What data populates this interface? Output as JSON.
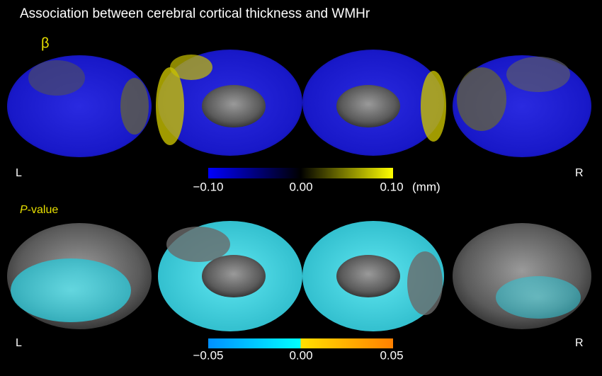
{
  "title": "Association between cerebral cortical thickness and  WMHr",
  "panels": [
    {
      "label": "β",
      "left": "L",
      "right": "R",
      "colorbar": {
        "ticks": [
          "−0.10",
          "0.00",
          "0.10"
        ],
        "unit": "(mm)"
      }
    },
    {
      "label_italic": "P",
      "label": "-value",
      "left": "L",
      "right": "R",
      "colorbar": {
        "ticks": [
          "−0.05",
          "0.00",
          "0.05"
        ]
      }
    }
  ]
}
